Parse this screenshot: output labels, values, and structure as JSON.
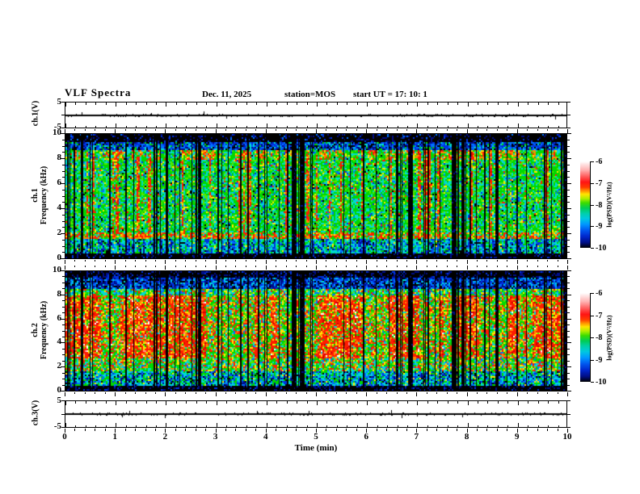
{
  "title": "VLF Spectra",
  "header": {
    "date": "Dec. 11, 2025",
    "station": "station=MOS",
    "start_ut": "start UT =  17: 10: 1"
  },
  "x_axis": {
    "label": "Time (min)",
    "ticks": [
      "0",
      "1",
      "2",
      "3",
      "4",
      "5",
      "6",
      "7",
      "8",
      "9",
      "10"
    ],
    "range_min": [
      0,
      10
    ],
    "minor_tick_step_min": 0.2
  },
  "panels": [
    {
      "id": "ch1-voltage",
      "type": "waveform",
      "ylabel": "ch.1(V)",
      "yticks": [
        "5",
        "-5"
      ],
      "yrange": [
        -5,
        5
      ]
    },
    {
      "id": "ch1-spectrogram",
      "type": "spectrogram",
      "ylabel_channel": "ch.1",
      "ylabel_axis": "Frequency (kHz)",
      "yticks": [
        "10",
        "8",
        "6",
        "4",
        "2",
        "0"
      ],
      "yrange_khz": [
        0,
        10
      ]
    },
    {
      "id": "ch2-spectrogram",
      "type": "spectrogram",
      "ylabel_channel": "ch.2",
      "ylabel_axis": "Frequency (kHz)",
      "yticks": [
        "10",
        "8",
        "6",
        "4",
        "2",
        "0"
      ],
      "yrange_khz": [
        0,
        10
      ]
    },
    {
      "id": "ch3-voltage",
      "type": "waveform",
      "ylabel": "ch.3(V)",
      "yticks": [
        "5",
        "-5"
      ],
      "yrange": [
        -5,
        5
      ]
    }
  ],
  "colorbars": [
    {
      "label": "log(PSD)(V²/Hz)",
      "ticks": [
        "-6",
        "-7",
        "-8",
        "-9",
        "-10"
      ],
      "range": [
        -10,
        -6
      ]
    },
    {
      "label": "log(PSD)(V²/Hz)",
      "ticks": [
        "-6",
        "-7",
        "-8",
        "-9",
        "-10"
      ],
      "range": [
        -10,
        -6
      ]
    }
  ],
  "colors": {
    "frame": "#000000",
    "background": "#ffffff",
    "colormap_stops": [
      "#ffffff",
      "#ffb0b0",
      "#ff1414",
      "#ff9100",
      "#ffe400",
      "#3cdc00",
      "#00cc55",
      "#00c8e0",
      "#0096ff",
      "#0026cc",
      "#000000"
    ]
  },
  "chart_data": [
    {
      "type": "line",
      "title": "ch.1 voltage waveform",
      "xlabel": "Time (min)",
      "ylabel": "ch.1(V)",
      "xlim": [
        0,
        10
      ],
      "ylim": [
        -5,
        5
      ],
      "grid": false,
      "series": [
        {
          "name": "ch.1 (V)",
          "description": "near-constant 0 V trace with sparse small impulsive spikes",
          "x": [
            0,
            10
          ],
          "values": [
            0,
            0
          ]
        }
      ]
    },
    {
      "type": "heatmap",
      "title": "ch.1 VLF spectrogram",
      "xlabel": "Time (min)",
      "ylabel": "Frequency (kHz)",
      "xlim": [
        0,
        10
      ],
      "ylim": [
        0,
        10
      ],
      "colorbar_label": "log(PSD)(V²/Hz)",
      "zlim": [
        -10,
        -6
      ],
      "frequency_bands": [
        {
          "band_khz": [
            0,
            0.4
          ],
          "typical_log_psd": -10
        },
        {
          "band_khz": [
            0.4,
            1.6
          ],
          "typical_log_psd": -8.7
        },
        {
          "band_khz": [
            1.6,
            2.1
          ],
          "typical_log_psd": -7.3
        },
        {
          "band_khz": [
            2.1,
            8.8
          ],
          "typical_log_psd": -8.2
        },
        {
          "band_khz": [
            8.8,
            9.4
          ],
          "typical_log_psd": -9.2
        },
        {
          "band_khz": [
            9.4,
            10
          ],
          "typical_log_psd": -10
        }
      ],
      "features": [
        "dense irregular vertical black dropout stripes across full band",
        "sporadic broadband impulsive red streaks (log PSD near -7)",
        "enhanced red band near 1.6-2.1 kHz",
        "green/cyan background (log PSD near -8 to -8.5)"
      ]
    },
    {
      "type": "heatmap",
      "title": "ch.2 VLF spectrogram",
      "xlabel": "Time (min)",
      "ylabel": "Frequency (kHz)",
      "xlim": [
        0,
        10
      ],
      "ylim": [
        0,
        10
      ],
      "colorbar_label": "log(PSD)(V²/Hz)",
      "zlim": [
        -10,
        -6
      ],
      "frequency_bands": [
        {
          "band_khz": [
            0,
            0.5
          ],
          "typical_log_psd": -10
        },
        {
          "band_khz": [
            0.5,
            1.7
          ],
          "typical_log_psd": -8.8
        },
        {
          "band_khz": [
            1.7,
            2.8
          ],
          "typical_log_psd": -8.3
        },
        {
          "band_khz": [
            2.8,
            8.0
          ],
          "typical_log_psd": -7.2
        },
        {
          "band_khz": [
            8.0,
            8.6
          ],
          "typical_log_psd": -8.4
        },
        {
          "band_khz": [
            8.6,
            9.5
          ],
          "typical_log_psd": -9.3
        },
        {
          "band_khz": [
            9.5,
            10
          ],
          "typical_log_psd": -10
        }
      ],
      "features": [
        "vertical dropout stripes aligned in time with ch.1",
        "broad strong emission (red/orange, log PSD near -7) between about 3 and 8 kHz",
        "dark blue region above 8.6 kHz"
      ]
    },
    {
      "type": "line",
      "title": "ch.3 voltage waveform",
      "xlabel": "Time (min)",
      "ylabel": "ch.3(V)",
      "xlim": [
        0,
        10
      ],
      "ylim": [
        -5,
        5
      ],
      "grid": false,
      "series": [
        {
          "name": "ch.3 (V)",
          "description": "near-constant 0 V trace with sparse small impulsive spikes",
          "x": [
            0,
            10
          ],
          "values": [
            0,
            0
          ]
        }
      ]
    }
  ]
}
